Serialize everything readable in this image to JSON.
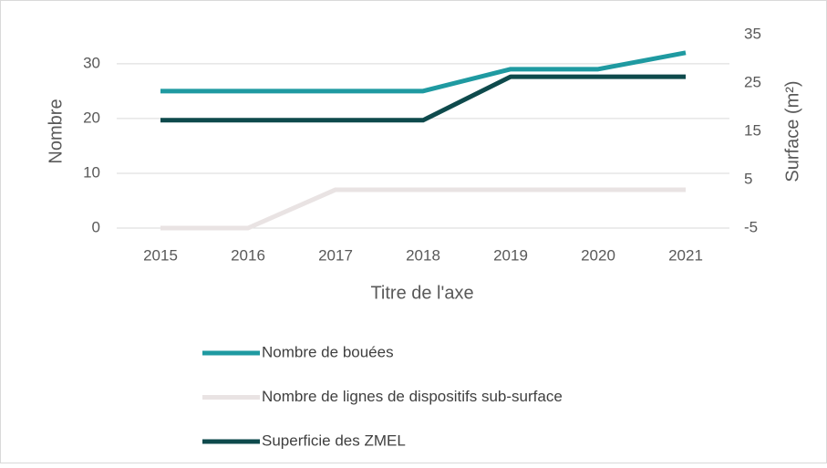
{
  "chart_data": {
    "type": "line",
    "x_label": "Titre de l'axe",
    "y_label": "Nombre",
    "y2_label": "Surface (m²)",
    "categories": [
      "2015",
      "2016",
      "2017",
      "2018",
      "2019",
      "2020",
      "2021"
    ],
    "series": [
      {
        "name": "Nombre de bouées",
        "color": "#1f9aa1",
        "values": [
          25,
          25,
          25,
          25,
          29,
          29,
          32
        ]
      },
      {
        "name": "Nombre de lignes de dispositifs sub-surface",
        "color": "#e9e3e3",
        "values": [
          0,
          0,
          7,
          7,
          7,
          7,
          7
        ]
      },
      {
        "name": "Superficie des ZMEL",
        "color": "#0e4a4c",
        "axis": "y2",
        "values": [
          17.3,
          17.3,
          17.3,
          17.3,
          26.3,
          26.3,
          26.3
        ]
      }
    ],
    "ylim": [
      0,
      35.3
    ],
    "yticks": [
      0,
      10,
      20,
      30
    ],
    "y2lim": [
      -5,
      35
    ],
    "y2ticks": [
      -5,
      5,
      15,
      25,
      35
    ],
    "grid": true,
    "legend": "bottom"
  }
}
